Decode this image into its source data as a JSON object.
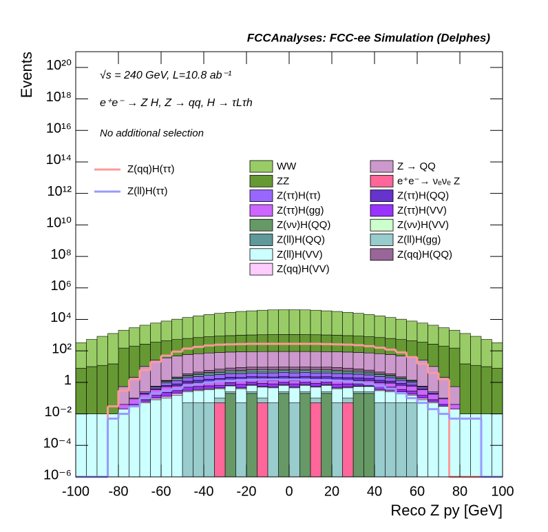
{
  "chart_data": {
    "type": "stacked_histogram",
    "title": "FCCAnalyses: FCC-ee Simulation (Delphes)",
    "annotations": [
      "√s = 240 GeV, L=10.8 ab⁻¹",
      "e⁺e⁻ → Z H, Z → qq, H → τLτh",
      "No additional selection"
    ],
    "xlabel": "Reco Z py [GeV]",
    "ylabel": "Events",
    "log_y": true,
    "xlim": [
      -100,
      100
    ],
    "ylim": [
      1e-06,
      1e+21
    ],
    "xticks": [
      -100,
      -80,
      -60,
      -40,
      -20,
      0,
      20,
      40,
      60,
      80,
      100
    ],
    "yticks": [
      {
        "value": 1e-06,
        "label": "10⁻⁶"
      },
      {
        "value": 0.0001,
        "label": "10⁻⁴"
      },
      {
        "value": 0.01,
        "label": "10⁻²"
      },
      1,
      {
        "value": 100,
        "label": "10²"
      },
      {
        "value": 10000.0,
        "label": "10⁴"
      },
      {
        "value": 1000000.0,
        "label": "10⁶"
      },
      {
        "value": 100000000.0,
        "label": "10⁸"
      },
      {
        "value": 10000000000.0,
        "label": "10¹⁰"
      },
      {
        "value": 1000000000000.0,
        "label": "10¹²"
      },
      {
        "value": 100000000000000.0,
        "label": "10¹⁴"
      },
      {
        "value": 1e+16,
        "label": "10¹⁶"
      },
      {
        "value": 1e+18,
        "label": "10¹⁸"
      },
      {
        "value": 1e+20,
        "label": "10²⁰"
      }
    ],
    "bins": [
      -100,
      -95,
      -90,
      -85,
      -80,
      -75,
      -70,
      -65,
      -60,
      -55,
      -50,
      -45,
      -40,
      -35,
      -30,
      -25,
      -20,
      -15,
      -10,
      -5,
      0,
      5,
      10,
      15,
      20,
      25,
      30,
      35,
      40,
      45,
      50,
      55,
      60,
      65,
      70,
      75,
      80,
      85,
      90,
      95,
      100
    ],
    "series": [
      {
        "name": "Z(νν)H(QQ)",
        "color": "#669966",
        "values": [
          0,
          0,
          0,
          0,
          0,
          0,
          0,
          0,
          0,
          0,
          0,
          0,
          0,
          0,
          0.2,
          0,
          0.2,
          0,
          0,
          0.2,
          0,
          0.2,
          0,
          0.2,
          0,
          0,
          0.2,
          0.2,
          0,
          0,
          0,
          0,
          0,
          0,
          0,
          0,
          0,
          0,
          0,
          0
        ]
      },
      {
        "name": "e⁺e⁻→ νₑνₑ Z",
        "color": "#ff6699",
        "values": [
          0,
          0,
          0,
          0,
          0,
          0,
          0,
          0,
          0,
          0,
          0,
          0,
          0,
          0.05,
          0,
          0,
          0,
          0.05,
          0,
          0,
          0,
          0,
          0.05,
          0,
          0,
          0.05,
          0,
          0,
          0,
          0,
          0,
          0,
          0,
          0,
          0,
          0,
          0,
          0,
          0,
          0
        ]
      },
      {
        "name": "Z(ll)H(gg)",
        "color": "#99cccc",
        "values": [
          0,
          0,
          0,
          0,
          0,
          0,
          0,
          0,
          0,
          0,
          0.05,
          0.05,
          0.05,
          0.05,
          0.05,
          0.05,
          0.05,
          0.05,
          0.05,
          0.05,
          0.05,
          0.05,
          0.05,
          0.05,
          0.05,
          0.05,
          0.05,
          0.05,
          0.05,
          0.05,
          0.05,
          0.05,
          0,
          0,
          0,
          0,
          0,
          0,
          0,
          0
        ]
      },
      {
        "name": "Z(ll)H(VV)",
        "color": "#ccffff",
        "values": [
          0.01,
          0.01,
          0.01,
          0.01,
          0.02,
          0.03,
          0.05,
          0.08,
          0.1,
          0.15,
          0.2,
          0.25,
          0.3,
          0.3,
          0.35,
          0.35,
          0.4,
          0.4,
          0.4,
          0.4,
          0.4,
          0.4,
          0.4,
          0.4,
          0.35,
          0.35,
          0.3,
          0.3,
          0.25,
          0.2,
          0.15,
          0.1,
          0.08,
          0.05,
          0.03,
          0.02,
          0.01,
          0.01,
          0.01,
          0.01
        ]
      },
      {
        "name": "Z(qq)H(VV)",
        "color": "#ffccff",
        "values": [
          0,
          0,
          0,
          0,
          0,
          0,
          0.01,
          0.02,
          0.03,
          0.05,
          0.05,
          0.05,
          0.05,
          0.05,
          0.05,
          0.05,
          0.05,
          0.05,
          0.05,
          0.05,
          0.05,
          0.05,
          0.05,
          0.05,
          0.05,
          0.05,
          0.05,
          0.05,
          0.05,
          0.05,
          0.05,
          0.03,
          0.02,
          0.01,
          0,
          0,
          0,
          0,
          0,
          0
        ]
      },
      {
        "name": "Z(ττ)H(VV)",
        "color": "#9933ff",
        "values": [
          0,
          0,
          0,
          0,
          0,
          0.01,
          0.02,
          0.05,
          0.1,
          0.1,
          0.2,
          0.2,
          0.2,
          0.2,
          0.3,
          0.3,
          0.3,
          0.3,
          0.3,
          0.3,
          0.3,
          0.3,
          0.3,
          0.3,
          0.3,
          0.3,
          0.2,
          0.2,
          0.2,
          0.2,
          0.1,
          0.1,
          0.05,
          0.02,
          0.01,
          0,
          0,
          0,
          0,
          0
        ]
      },
      {
        "name": "Z(ττ)H(gg)",
        "color": "#cc66ff",
        "values": [
          0,
          0,
          0,
          0,
          0.02,
          0.05,
          0.1,
          0.2,
          0.3,
          0.3,
          0.4,
          0.4,
          0.5,
          0.5,
          0.5,
          0.5,
          0.5,
          0.5,
          0.5,
          0.5,
          0.5,
          0.5,
          0.5,
          0.5,
          0.5,
          0.5,
          0.5,
          0.5,
          0.4,
          0.4,
          0.3,
          0.3,
          0.2,
          0.1,
          0.05,
          0.02,
          0,
          0,
          0,
          0
        ]
      },
      {
        "name": "Z(ττ)H(QQ)",
        "color": "#6633cc",
        "values": [
          0,
          0,
          0,
          0,
          0,
          0,
          0.02,
          0.05,
          0.1,
          0.2,
          0.3,
          0.4,
          0.5,
          0.6,
          0.7,
          0.8,
          0.8,
          0.9,
          0.9,
          0.9,
          0.9,
          0.9,
          0.9,
          0.8,
          0.8,
          0.7,
          0.6,
          0.5,
          0.4,
          0.3,
          0.2,
          0.1,
          0.05,
          0.02,
          0,
          0,
          0,
          0,
          0,
          0
        ]
      },
      {
        "name": "Z(ττ)H(ττ)",
        "color": "#9966ff",
        "values": [
          0,
          0,
          0,
          0,
          0,
          0.01,
          0.05,
          0.1,
          0.3,
          0.5,
          0.8,
          1,
          1.2,
          1.4,
          1.5,
          1.6,
          1.7,
          1.7,
          1.8,
          1.8,
          1.8,
          1.8,
          1.7,
          1.7,
          1.6,
          1.5,
          1.4,
          1.2,
          1,
          0.8,
          0.5,
          0.3,
          0.1,
          0.05,
          0.01,
          0,
          0,
          0,
          0,
          0
        ]
      },
      {
        "name": "Z(ll)H(QQ)",
        "color": "#5f9999",
        "values": [
          0,
          0,
          0,
          0,
          0,
          0,
          0,
          0.05,
          0.2,
          0.4,
          0.6,
          0.8,
          1,
          1.2,
          1.3,
          1.4,
          1.5,
          1.5,
          1.5,
          1.5,
          1.5,
          1.5,
          1.5,
          1.5,
          1.4,
          1.3,
          1.2,
          1,
          0.8,
          0.6,
          0.4,
          0.2,
          0.05,
          0,
          0,
          0,
          0,
          0,
          0,
          0
        ]
      },
      {
        "name": "Z(νν)H(VV)",
        "color": "#ccffcc",
        "values": [
          0,
          0,
          0,
          0,
          0,
          0,
          0,
          0.02,
          0.1,
          0.2,
          0.3,
          0.4,
          0.5,
          0.6,
          0.7,
          0.7,
          0.8,
          0.8,
          0.8,
          0.8,
          0.8,
          0.8,
          0.8,
          0.8,
          0.7,
          0.7,
          0.6,
          0.5,
          0.4,
          0.3,
          0.2,
          0.1,
          0.02,
          0,
          0,
          0,
          0,
          0,
          0,
          0
        ]
      },
      {
        "name": "Z(qq)H(QQ)",
        "color": "#996699",
        "values": [
          0,
          0,
          0,
          0,
          0,
          0,
          0,
          0,
          0.1,
          0.3,
          0.6,
          1,
          1.5,
          2,
          2.5,
          3,
          3,
          3,
          3,
          3,
          3,
          3,
          3,
          3,
          3,
          2.5,
          2,
          1.5,
          1,
          0.6,
          0.3,
          0.1,
          0,
          0,
          0,
          0,
          0,
          0,
          0,
          0
        ]
      },
      {
        "name": "Z → QQ",
        "color": "#cc99cc",
        "values": [
          0,
          0,
          0,
          0,
          0.5,
          2,
          10,
          25,
          35,
          45,
          55,
          62,
          68,
          72,
          76,
          78,
          80,
          81,
          82,
          82,
          82,
          82,
          81,
          80,
          78,
          76,
          72,
          68,
          62,
          55,
          45,
          35,
          25,
          10,
          2,
          0.5,
          0,
          0,
          0,
          0
        ]
      },
      {
        "name": "ZZ",
        "color": "#669933",
        "values": [
          8,
          10,
          12,
          15,
          150,
          200,
          260,
          330,
          400,
          480,
          560,
          640,
          720,
          790,
          850,
          900,
          940,
          970,
          990,
          1000,
          1000,
          990,
          970,
          940,
          900,
          850,
          790,
          720,
          640,
          560,
          480,
          400,
          330,
          260,
          200,
          150,
          15,
          12,
          10,
          8
        ]
      },
      {
        "name": "WW",
        "color": "#99cc66",
        "values": [
          320,
          525,
          830,
          1260,
          1900,
          2750,
          4000,
          5500,
          7400,
          9800,
          12600,
          15900,
          19500,
          23400,
          27000,
          30900,
          33900,
          37100,
          38900,
          39800,
          39800,
          38900,
          37100,
          33900,
          30900,
          27000,
          23400,
          19500,
          15900,
          12600,
          9800,
          7400,
          5500,
          4000,
          2750,
          1900,
          1260,
          830,
          525,
          320
        ]
      }
    ],
    "lines": [
      {
        "name": "Z(qq)H(ττ)",
        "color": "#ff9999",
        "values": [
          0,
          0,
          0,
          0.03,
          0.3,
          1.5,
          6,
          20,
          50,
          90,
          140,
          180,
          220,
          250,
          260,
          270,
          280,
          280,
          280,
          280,
          280,
          280,
          280,
          270,
          260,
          250,
          230,
          200,
          160,
          120,
          80,
          40,
          15,
          4,
          1.5,
          0,
          0,
          0,
          0,
          0
        ]
      },
      {
        "name": "Z(ll)H(ττ)",
        "color": "#9999ff",
        "values": [
          0,
          0,
          0,
          0.005,
          0.01,
          0.03,
          0.1,
          0.2,
          0.3,
          0.4,
          0.6,
          0.8,
          1,
          1.2,
          1.3,
          1.4,
          1.5,
          1.5,
          1.5,
          1.5,
          1.5,
          1.5,
          1.4,
          1.4,
          1.3,
          1.2,
          1,
          0.8,
          0.6,
          0.4,
          0.2,
          0.1,
          0.05,
          0.02,
          0.01,
          0.005,
          0.005,
          0.005,
          0,
          0
        ]
      }
    ]
  }
}
